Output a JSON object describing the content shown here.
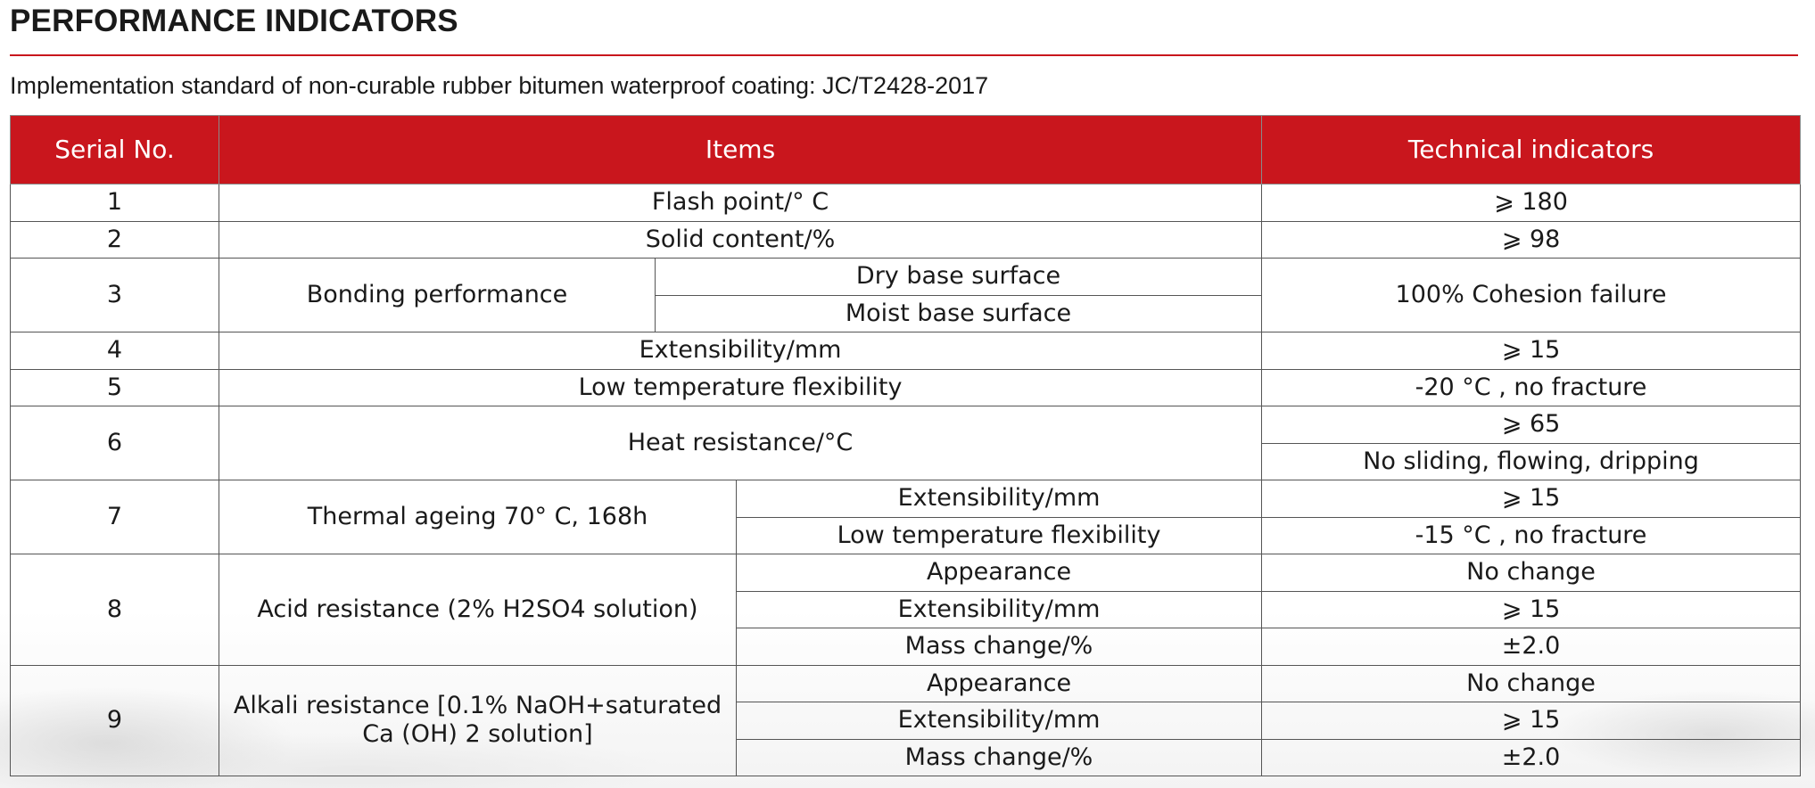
{
  "page": {
    "title": "PERFORMANCE INDICATORS",
    "subtitle": "Implementation standard of non-curable rubber bitumen waterproof coating: JC/T2428-2017"
  },
  "table": {
    "headers": [
      "Serial No.",
      "Items",
      "Technical indicators"
    ],
    "rows": {
      "r1": {
        "serial": "1",
        "item": "Flash point/° C",
        "value": "⩾ 180"
      },
      "r2": {
        "serial": "2",
        "item": "Solid content/%",
        "value": "⩾ 98"
      },
      "r3": {
        "serial": "3",
        "item": "Bonding performance",
        "sub": [
          "Dry base surface",
          "Moist base surface"
        ],
        "value": "100% Cohesion failure"
      },
      "r4": {
        "serial": "4",
        "item": "Extensibility/mm",
        "value": "⩾ 15"
      },
      "r5": {
        "serial": "5",
        "item": "Low temperature flexibility",
        "value": "-20 °C , no fracture"
      },
      "r6": {
        "serial": "6",
        "item": "Heat resistance/°C",
        "values": [
          "⩾ 65",
          "No sliding, flowing, dripping"
        ]
      },
      "r7": {
        "serial": "7",
        "item": "Thermal ageing 70° C, 168h",
        "sub": [
          "Extensibility/mm",
          "Low temperature flexibility"
        ],
        "values": [
          "⩾ 15",
          "-15 °C , no fracture"
        ]
      },
      "r8": {
        "serial": "8",
        "item": "Acid resistance (2% H2SO4 solution)",
        "sub": [
          "Appearance",
          "Extensibility/mm",
          "Mass change/%"
        ],
        "values": [
          "No change",
          "⩾ 15",
          "±2.0"
        ]
      },
      "r9": {
        "serial": "9",
        "item": "Alkali resistance [0.1% NaOH+saturated Ca (OH) 2 solution]",
        "sub": [
          "Appearance",
          "Extensibility/mm",
          "Mass change/%"
        ],
        "values": [
          "No change",
          "⩾ 15",
          "±2.0"
        ]
      }
    }
  },
  "colors": {
    "accent": "#c9161d",
    "header_text": "#ffffff",
    "border": "#555555"
  }
}
